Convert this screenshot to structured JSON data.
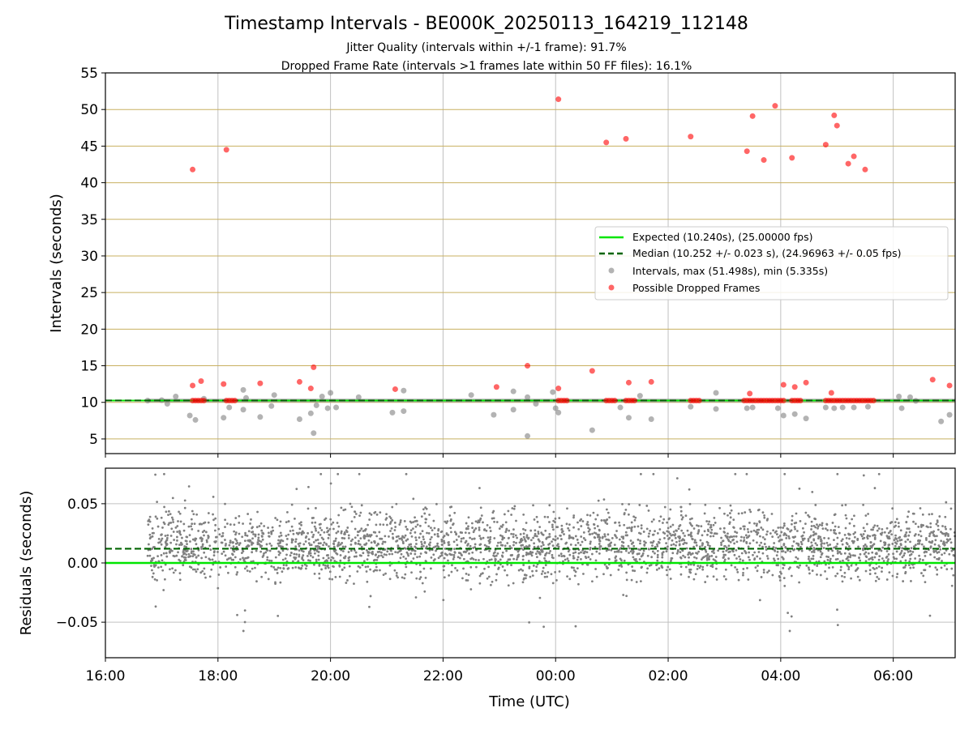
{
  "colors": {
    "expected": "#00e600",
    "median": "#006400",
    "intervals": "#808080",
    "dropped": "#ff0000",
    "hgrid_top": "#c8b060",
    "vgrid": "#c0c0c0"
  },
  "chart_data": [
    {
      "type": "scatter",
      "title": "Timestamp Intervals - BE000K_20250113_164219_112148",
      "subtitle_1": "Jitter Quality (intervals within +/-1 frame): 91.7%",
      "subtitle_2": "Dropped Frame Rate (intervals >1 frames late within 50 FF files): 16.1%",
      "ylabel": "Intervals (seconds)",
      "ylim": [
        3,
        55
      ],
      "xlim_hours": [
        16,
        31.1
      ],
      "yticks": [
        5,
        10,
        15,
        20,
        25,
        30,
        35,
        40,
        45,
        50,
        55
      ],
      "grid": "on",
      "legend_position": "right",
      "legend": [
        "Expected (10.240s), (25.00000 fps)",
        "Median (10.252 +/- 0.023 s), (24.96963 +/- 0.05 fps)",
        "Intervals, max (51.498s), min (5.335s)",
        "Possible Dropped Frames"
      ],
      "expected_value": 10.24,
      "median_value": 10.252,
      "series": [
        {
          "name": "Intervals, max (51.498s), min (5.335s)",
          "points": [
            [
              16.75,
              10.25
            ],
            [
              17.0,
              10.3
            ],
            [
              17.1,
              9.8
            ],
            [
              17.25,
              10.8
            ],
            [
              17.5,
              8.2
            ],
            [
              17.6,
              7.6
            ],
            [
              17.75,
              10.5
            ],
            [
              18.1,
              7.9
            ],
            [
              18.2,
              9.3
            ],
            [
              18.45,
              9.0
            ],
            [
              18.45,
              11.7
            ],
            [
              18.5,
              10.6
            ],
            [
              18.75,
              8.0
            ],
            [
              18.95,
              9.5
            ],
            [
              19.0,
              11.0
            ],
            [
              19.45,
              7.7
            ],
            [
              19.65,
              8.5
            ],
            [
              19.7,
              5.8
            ],
            [
              19.75,
              9.6
            ],
            [
              19.85,
              10.8
            ],
            [
              19.95,
              9.2
            ],
            [
              20.0,
              11.3
            ],
            [
              20.1,
              9.3
            ],
            [
              20.5,
              10.7
            ],
            [
              21.1,
              8.6
            ],
            [
              21.3,
              8.8
            ],
            [
              21.3,
              11.6
            ],
            [
              22.5,
              11.0
            ],
            [
              22.9,
              8.3
            ],
            [
              23.25,
              9.0
            ],
            [
              23.25,
              11.5
            ],
            [
              23.5,
              5.4
            ],
            [
              23.5,
              10.7
            ],
            [
              23.65,
              9.8
            ],
            [
              23.95,
              11.4
            ],
            [
              24.0,
              9.2
            ],
            [
              24.05,
              8.6
            ],
            [
              24.65,
              6.2
            ],
            [
              25.15,
              9.3
            ],
            [
              25.3,
              7.9
            ],
            [
              25.5,
              10.9
            ],
            [
              25.7,
              7.7
            ],
            [
              26.4,
              9.4
            ],
            [
              26.85,
              9.1
            ],
            [
              26.85,
              11.3
            ],
            [
              27.4,
              9.2
            ],
            [
              27.5,
              9.3
            ],
            [
              27.95,
              9.2
            ],
            [
              28.05,
              8.2
            ],
            [
              28.25,
              8.4
            ],
            [
              28.45,
              7.8
            ],
            [
              28.8,
              9.3
            ],
            [
              28.95,
              9.2
            ],
            [
              29.1,
              9.3
            ],
            [
              29.3,
              9.3
            ],
            [
              29.55,
              9.4
            ],
            [
              30.1,
              10.8
            ],
            [
              30.15,
              9.2
            ],
            [
              30.3,
              10.7
            ],
            [
              30.4,
              10.2
            ],
            [
              30.85,
              7.4
            ],
            [
              31.0,
              8.3
            ]
          ]
        },
        {
          "name": "Possible Dropped Frames",
          "points": [
            [
              17.55,
              41.8
            ],
            [
              18.15,
              44.5
            ],
            [
              24.05,
              51.4
            ],
            [
              24.9,
              45.5
            ],
            [
              25.25,
              46.0
            ],
            [
              26.4,
              46.3
            ],
            [
              27.4,
              44.3
            ],
            [
              27.5,
              49.1
            ],
            [
              27.7,
              43.1
            ],
            [
              27.9,
              50.5
            ],
            [
              28.2,
              43.4
            ],
            [
              28.8,
              45.2
            ],
            [
              28.95,
              49.2
            ],
            [
              29.0,
              47.8
            ],
            [
              29.2,
              42.6
            ],
            [
              29.3,
              43.6
            ],
            [
              29.5,
              41.8
            ],
            [
              17.55,
              12.3
            ],
            [
              17.7,
              12.9
            ],
            [
              18.1,
              12.5
            ],
            [
              18.75,
              12.6
            ],
            [
              19.45,
              12.8
            ],
            [
              19.65,
              11.9
            ],
            [
              19.7,
              14.8
            ],
            [
              21.15,
              11.8
            ],
            [
              22.95,
              12.1
            ],
            [
              23.5,
              15.0
            ],
            [
              24.05,
              11.9
            ],
            [
              24.65,
              14.3
            ],
            [
              25.3,
              12.7
            ],
            [
              25.7,
              12.8
            ],
            [
              28.05,
              12.4
            ],
            [
              28.25,
              12.1
            ],
            [
              28.45,
              12.7
            ],
            [
              28.9,
              11.3
            ],
            [
              30.7,
              13.1
            ],
            [
              31.0,
              12.3
            ],
            [
              27.45,
              11.2
            ],
            [
              17.55,
              10.24
            ],
            [
              17.6,
              10.24
            ],
            [
              17.65,
              10.24
            ],
            [
              17.7,
              10.24
            ],
            [
              17.75,
              10.24
            ],
            [
              18.15,
              10.24
            ],
            [
              18.2,
              10.24
            ],
            [
              18.25,
              10.24
            ],
            [
              18.3,
              10.24
            ],
            [
              24.05,
              10.24
            ],
            [
              24.1,
              10.24
            ],
            [
              24.15,
              10.24
            ],
            [
              24.2,
              10.24
            ],
            [
              24.9,
              10.24
            ],
            [
              24.95,
              10.24
            ],
            [
              25.0,
              10.24
            ],
            [
              25.05,
              10.24
            ],
            [
              25.25,
              10.24
            ],
            [
              25.3,
              10.24
            ],
            [
              25.35,
              10.24
            ],
            [
              25.4,
              10.24
            ],
            [
              26.4,
              10.24
            ],
            [
              26.45,
              10.24
            ],
            [
              26.5,
              10.24
            ],
            [
              26.55,
              10.24
            ],
            [
              27.35,
              10.24
            ],
            [
              27.4,
              10.24
            ],
            [
              27.45,
              10.24
            ],
            [
              27.5,
              10.24
            ],
            [
              27.55,
              10.24
            ],
            [
              27.6,
              10.24
            ],
            [
              27.65,
              10.24
            ],
            [
              27.7,
              10.24
            ],
            [
              27.75,
              10.24
            ],
            [
              27.8,
              10.24
            ],
            [
              27.85,
              10.24
            ],
            [
              27.9,
              10.24
            ],
            [
              27.95,
              10.24
            ],
            [
              28.0,
              10.24
            ],
            [
              28.05,
              10.24
            ],
            [
              28.2,
              10.24
            ],
            [
              28.25,
              10.24
            ],
            [
              28.3,
              10.24
            ],
            [
              28.35,
              10.24
            ],
            [
              28.8,
              10.24
            ],
            [
              28.85,
              10.24
            ],
            [
              28.9,
              10.24
            ],
            [
              28.95,
              10.24
            ],
            [
              29.0,
              10.24
            ],
            [
              29.05,
              10.24
            ],
            [
              29.1,
              10.24
            ],
            [
              29.15,
              10.24
            ],
            [
              29.2,
              10.24
            ],
            [
              29.25,
              10.24
            ],
            [
              29.3,
              10.24
            ],
            [
              29.35,
              10.24
            ],
            [
              29.4,
              10.24
            ],
            [
              29.45,
              10.24
            ],
            [
              29.5,
              10.24
            ],
            [
              29.55,
              10.24
            ],
            [
              29.6,
              10.24
            ],
            [
              29.65,
              10.24
            ]
          ]
        }
      ]
    },
    {
      "type": "scatter",
      "ylabel": "Residuals (seconds)",
      "xlabel": "Time (UTC)",
      "ylim": [
        -0.08,
        0.08
      ],
      "yticks": [
        0.05,
        0.0,
        -0.05
      ],
      "ytick_labels": [
        "0.05",
        "0.00",
        "−0.05"
      ],
      "xlim_hours": [
        16,
        31.1
      ],
      "xticks_hours": [
        16,
        18,
        20,
        22,
        24,
        26,
        28,
        30
      ],
      "xtick_labels": [
        "16:00",
        "18:00",
        "20:00",
        "22:00",
        "00:00",
        "02:00",
        "04:00",
        "06:00"
      ],
      "expected_residual": 0.0,
      "median_residual": 0.012,
      "residual_sampling": {
        "x_start_hours": 16.75,
        "x_end_hours": 31.1,
        "count": 3000,
        "center": 0.015,
        "spread": 0.02,
        "min": -0.08,
        "max": 0.075
      }
    }
  ]
}
